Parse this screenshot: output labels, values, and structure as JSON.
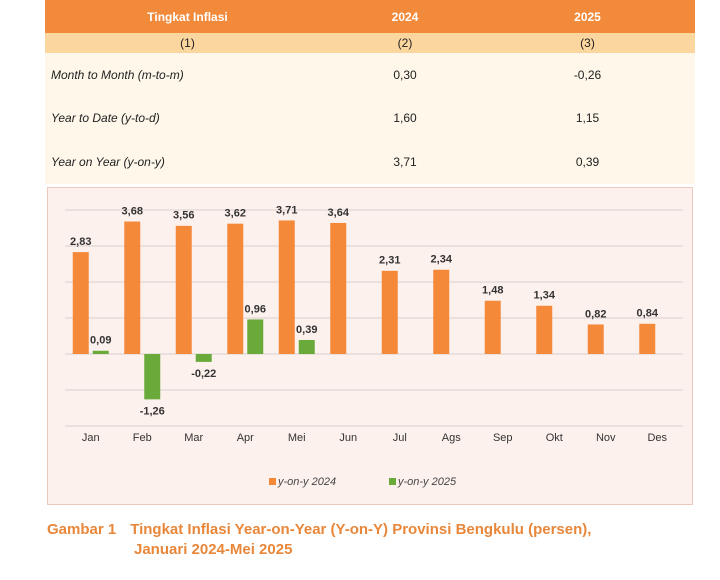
{
  "table": {
    "header": [
      "Tingkat Inflasi",
      "2024",
      "2025"
    ],
    "subheader": [
      "(1)",
      "(2)",
      "(3)"
    ],
    "rows": [
      [
        "Month to Month (m-to-m)",
        "0,30",
        "-0,26"
      ],
      [
        "Year to Date (y-to-d)",
        "1,60",
        "1,15"
      ],
      [
        "Year on Year (y-on-y)",
        "3,71",
        "0,39"
      ]
    ]
  },
  "chart_data": {
    "type": "bar",
    "categories": [
      "Jan",
      "Feb",
      "Mar",
      "Apr",
      "Mei",
      "Jun",
      "Jul",
      "Ags",
      "Sep",
      "Okt",
      "Nov",
      "Des"
    ],
    "series": [
      {
        "name": "y-on-y 2024",
        "color": "#f5893a",
        "values": [
          2.83,
          3.68,
          3.56,
          3.62,
          3.71,
          3.64,
          2.31,
          2.34,
          1.48,
          1.34,
          0.82,
          0.84
        ],
        "value_labels": [
          "2,83",
          "3,68",
          "3,56",
          "3,62",
          "3,71",
          "3,64",
          "2,31",
          "2,34",
          "1,48",
          "1,34",
          "0,82",
          "0,84"
        ]
      },
      {
        "name": "y-on-y 2025",
        "color": "#6aaa3a",
        "values": [
          0.09,
          -1.26,
          -0.22,
          0.96,
          0.39,
          null,
          null,
          null,
          null,
          null,
          null,
          null
        ],
        "value_labels": [
          "0,09",
          "-1,26",
          "-0,22",
          "0,96",
          "0,39",
          null,
          null,
          null,
          null,
          null,
          null,
          null
        ]
      }
    ],
    "ylim": [
      -2,
      4
    ],
    "yticks": [
      -2,
      -1,
      0,
      1,
      2,
      3,
      4
    ],
    "grid": true
  },
  "caption": {
    "label": "Gambar 1",
    "text": "Tingkat Inflasi Year-on-Year (Y-on-Y) Provinsi Bengkulu (persen),",
    "text2": "Januari 2024-Mei 2025"
  }
}
